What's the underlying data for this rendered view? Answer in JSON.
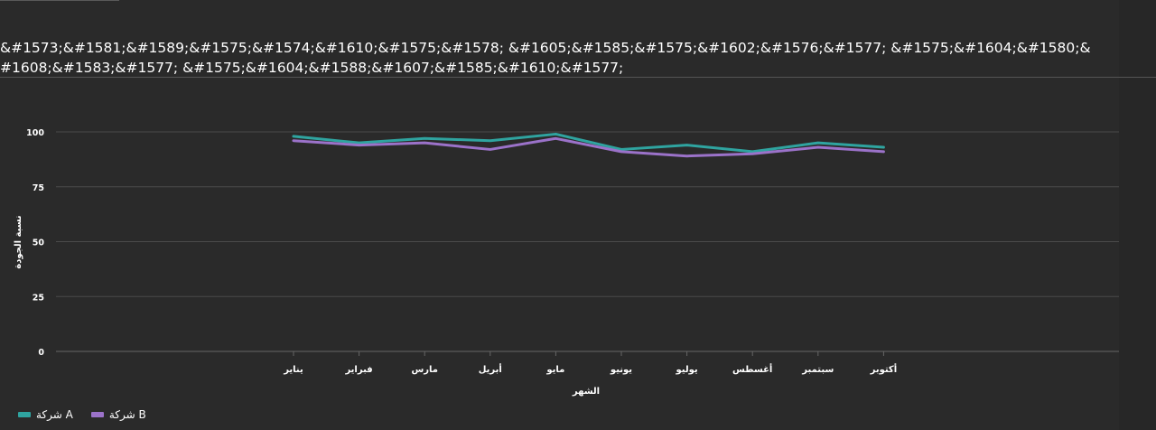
{
  "title": "&#1573;&#1581;&#1589;&#1575;&#1574;&#1610;&#1575;&#1578; &#1605;&#1585;&#1575;&#1602;&#1576;&#1577; &#1575;&#1604;&#1580;&#1608;&#1583;&#1577; &#1575;&#1604;&#1588;&#1607;&#1585;&#1610;&#1577;",
  "colors": {
    "series_a": "#2fa4a0",
    "series_b": "#9b72c9",
    "grid": "#4a4a4a",
    "axis": "#666666"
  },
  "chart_data": {
    "type": "line",
    "categories": [
      "يناير",
      "فبراير",
      "مارس",
      "أبريل",
      "مايو",
      "يونيو",
      "يوليو",
      "أغسطس",
      "سبتمبر",
      "أكتوبر"
    ],
    "series": [
      {
        "name": "شركة A",
        "values": [
          98,
          95,
          97,
          96,
          99,
          92,
          94,
          91,
          95,
          93
        ]
      },
      {
        "name": "شركة B",
        "values": [
          96,
          94,
          95,
          92,
          97,
          91,
          89,
          90,
          93,
          91
        ]
      }
    ],
    "xlabel": "الشهر",
    "ylabel": "نسبة الجودة",
    "ylim": [
      0,
      100
    ],
    "yticks": [
      0,
      25,
      50,
      75,
      100
    ],
    "grid": true,
    "legend": "bottom-left"
  }
}
